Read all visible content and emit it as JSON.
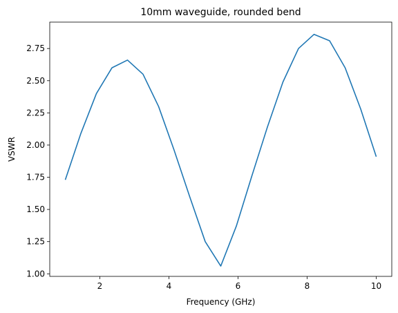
{
  "chart_data": {
    "type": "line",
    "title": "10mm waveguide, rounded bend",
    "xlabel": "Frequency (GHz)",
    "ylabel": "VSWR",
    "xlim": [
      0.55,
      10.45
    ],
    "ylim": [
      0.98,
      2.955
    ],
    "xticks": [
      2,
      4,
      6,
      8,
      10
    ],
    "yticks": [
      1.0,
      1.25,
      1.5,
      1.75,
      2.0,
      2.25,
      2.5,
      2.75
    ],
    "xtick_labels": [
      "2",
      "4",
      "6",
      "8",
      "10"
    ],
    "ytick_labels": [
      "1.00",
      "1.25",
      "1.50",
      "1.75",
      "2.00",
      "2.25",
      "2.50",
      "2.75"
    ],
    "grid": false,
    "series": [
      {
        "color": "#1f77b4",
        "x": [
          1.0,
          1.45,
          1.9,
          2.35,
          2.8,
          3.25,
          3.7,
          4.15,
          4.6,
          5.05,
          5.5,
          5.95,
          6.4,
          6.85,
          7.3,
          7.75,
          8.2,
          8.65,
          9.1,
          9.55,
          10.0
        ],
        "y": [
          1.73,
          2.09,
          2.4,
          2.6,
          2.66,
          2.55,
          2.3,
          1.96,
          1.6,
          1.25,
          1.06,
          1.37,
          1.76,
          2.14,
          2.49,
          2.75,
          2.86,
          2.81,
          2.6,
          2.28,
          1.91
        ]
      }
    ]
  }
}
